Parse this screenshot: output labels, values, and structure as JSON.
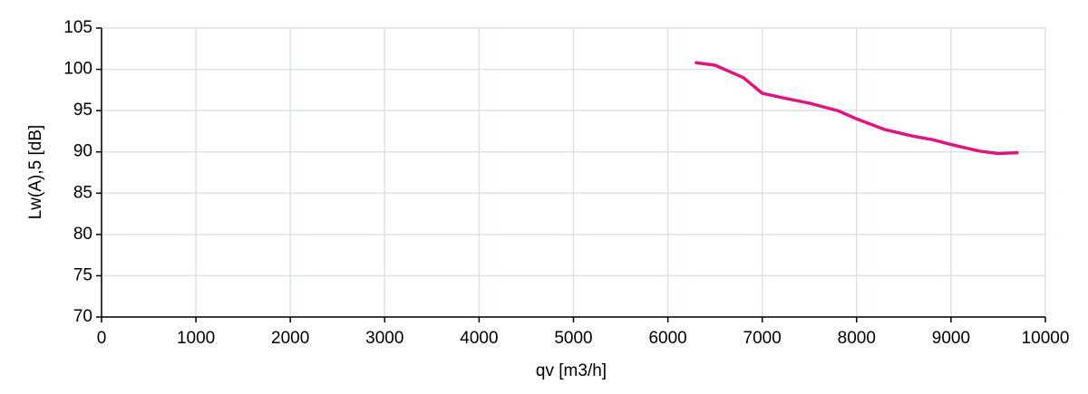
{
  "chart_data": {
    "type": "line",
    "x_label": "qv [m3/h]",
    "y_label": "Lw(A),5 [dB]",
    "xlim": [
      0,
      10000
    ],
    "xticks": [
      0,
      1000,
      2000,
      3000,
      4000,
      5000,
      6000,
      7000,
      8000,
      9000,
      10000
    ],
    "ylim": [
      70,
      105
    ],
    "yticks": [
      70,
      75,
      80,
      85,
      90,
      95,
      100,
      105
    ],
    "grid": true,
    "series": [
      {
        "color": "#e0157f",
        "x": [
          6300,
          6500,
          6800,
          7000,
          7200,
          7500,
          7800,
          8000,
          8300,
          8600,
          8800,
          9000,
          9300,
          9500,
          9700
        ],
        "values": [
          100.8,
          100.5,
          99.0,
          97.1,
          96.6,
          95.9,
          95.0,
          94.0,
          92.7,
          91.9,
          91.5,
          90.9,
          90.1,
          89.8,
          89.9
        ]
      }
    ]
  }
}
